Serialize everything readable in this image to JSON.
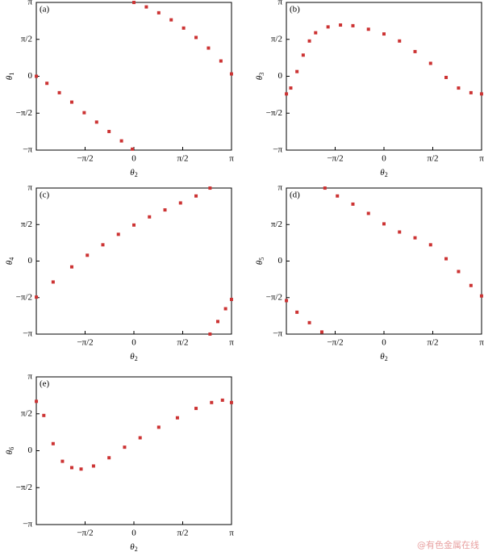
{
  "chart_data": [
    {
      "type": "scatter",
      "label": "(a)",
      "xlabel": {
        "symbol": "θ",
        "sub": "2"
      },
      "ylabel": {
        "symbol": "θ",
        "sub": "1"
      },
      "xlim": [
        -3.1416,
        3.1416
      ],
      "ylim": [
        -3.1416,
        3.1416
      ],
      "xticks": [
        {
          "value": -1.5708,
          "label": "−π/2"
        },
        0,
        {
          "value": 1.5708,
          "label": "π/2"
        },
        {
          "value": 3.1416,
          "label": "π"
        }
      ],
      "yticks": [
        {
          "value": -3.1416,
          "label": "−π"
        },
        {
          "value": -1.5708,
          "label": "−π/2"
        },
        0,
        {
          "value": 1.5708,
          "label": "π/2"
        },
        {
          "value": 3.1416,
          "label": "π"
        }
      ],
      "series": [
        {
          "color": "#cc3333",
          "x": [
            -3.14,
            -2.8,
            -2.4,
            -2.0,
            -1.6,
            -1.2,
            -0.8,
            -0.4,
            -0.05
          ],
          "values": [
            0,
            -0.3,
            -0.7,
            -1.1,
            -1.55,
            -1.95,
            -2.35,
            -2.75,
            -3.1
          ]
        },
        {
          "color": "#cc3333",
          "x": [
            0,
            0.4,
            0.8,
            1.2,
            1.6,
            2.0,
            2.4,
            2.8,
            3.14
          ],
          "values": [
            3.14,
            2.95,
            2.7,
            2.4,
            2.05,
            1.65,
            1.2,
            0.65,
            0.1
          ]
        }
      ]
    },
    {
      "type": "scatter",
      "label": "(b)",
      "xlabel": {
        "symbol": "θ",
        "sub": "2"
      },
      "ylabel": {
        "symbol": "θ",
        "sub": "3"
      },
      "xlim": [
        -3.1416,
        3.1416
      ],
      "ylim": [
        -3.1416,
        3.1416
      ],
      "xticks": [
        {
          "value": -1.5708,
          "label": "−π/2"
        },
        0,
        {
          "value": 1.5708,
          "label": "π/2"
        },
        {
          "value": 3.1416,
          "label": "π"
        }
      ],
      "yticks": [
        {
          "value": -3.1416,
          "label": "−π"
        },
        {
          "value": -1.5708,
          "label": "−π/2"
        },
        0,
        {
          "value": 1.5708,
          "label": "π/2"
        },
        {
          "value": 3.1416,
          "label": "π"
        }
      ],
      "series": [
        {
          "color": "#cc3333",
          "x": [
            -3.14,
            -3.0,
            -2.8,
            -2.6,
            -2.4,
            -2.2,
            -1.8,
            -1.4,
            -1.0,
            -0.5,
            0,
            0.5,
            1.0,
            1.5,
            2.0,
            2.4,
            2.8,
            3.14
          ],
          "values": [
            -0.75,
            -0.5,
            0.2,
            0.9,
            1.5,
            1.85,
            2.1,
            2.18,
            2.15,
            2.0,
            1.8,
            1.5,
            1.05,
            0.55,
            -0.05,
            -0.5,
            -0.7,
            -0.75
          ]
        }
      ]
    },
    {
      "type": "scatter",
      "label": "(c)",
      "xlabel": {
        "symbol": "θ",
        "sub": "2"
      },
      "ylabel": {
        "symbol": "θ",
        "sub": "4"
      },
      "xlim": [
        -3.1416,
        3.1416
      ],
      "ylim": [
        -3.1416,
        3.1416
      ],
      "xticks": [
        {
          "value": -1.5708,
          "label": "−π/2"
        },
        0,
        {
          "value": 1.5708,
          "label": "π/2"
        },
        {
          "value": 3.1416,
          "label": "π"
        }
      ],
      "yticks": [
        {
          "value": -3.1416,
          "label": "−π"
        },
        {
          "value": -1.5708,
          "label": "−π/2"
        },
        0,
        {
          "value": 1.5708,
          "label": "π/2"
        },
        {
          "value": 3.1416,
          "label": "π"
        }
      ],
      "series": [
        {
          "color": "#cc3333",
          "x": [
            -3.14,
            -2.6,
            -2.0,
            -1.5,
            -1.0,
            -0.5,
            0,
            0.5,
            1.0,
            1.5,
            2.0,
            2.45
          ],
          "values": [
            -1.55,
            -0.9,
            -0.25,
            0.25,
            0.7,
            1.15,
            1.55,
            1.9,
            2.2,
            2.5,
            2.8,
            3.14
          ]
        },
        {
          "color": "#cc3333",
          "x": [
            2.45,
            2.7,
            2.95,
            3.14
          ],
          "values": [
            -3.14,
            -2.6,
            -2.05,
            -1.65
          ]
        }
      ]
    },
    {
      "type": "scatter",
      "label": "(d)",
      "xlabel": {
        "symbol": "θ",
        "sub": "2"
      },
      "ylabel": {
        "symbol": "θ",
        "sub": "5"
      },
      "xlim": [
        -3.1416,
        3.1416
      ],
      "ylim": [
        -3.1416,
        3.1416
      ],
      "xticks": [
        {
          "value": -1.5708,
          "label": "−π/2"
        },
        0,
        {
          "value": 1.5708,
          "label": "π/2"
        },
        {
          "value": 3.1416,
          "label": "π"
        }
      ],
      "yticks": [
        {
          "value": -3.1416,
          "label": "−π"
        },
        {
          "value": -1.5708,
          "label": "−π/2"
        },
        0,
        {
          "value": 1.5708,
          "label": "π/2"
        },
        {
          "value": 3.1416,
          "label": "π"
        }
      ],
      "series": [
        {
          "color": "#cc3333",
          "x": [
            -1.9,
            -1.5,
            -1.0,
            -0.5,
            0,
            0.5,
            1.0,
            1.5,
            2.0,
            2.4,
            2.8,
            3.14
          ],
          "values": [
            3.14,
            2.8,
            2.45,
            2.05,
            1.6,
            1.25,
            1.0,
            0.7,
            0.1,
            -0.45,
            -1.05,
            -1.5
          ]
        },
        {
          "color": "#cc3333",
          "x": [
            -3.14,
            -2.8,
            -2.4,
            -2.0
          ],
          "values": [
            -1.7,
            -2.2,
            -2.65,
            -3.05
          ]
        }
      ]
    },
    {
      "type": "scatter",
      "label": "(e)",
      "xlabel": {
        "symbol": "θ",
        "sub": "2"
      },
      "ylabel": {
        "symbol": "θ",
        "sub": "6"
      },
      "xlim": [
        -3.1416,
        3.1416
      ],
      "ylim": [
        -3.1416,
        3.1416
      ],
      "xticks": [
        {
          "value": -1.5708,
          "label": "−π/2"
        },
        0,
        {
          "value": 1.5708,
          "label": "π/2"
        },
        {
          "value": 3.1416,
          "label": "π"
        }
      ],
      "yticks": [
        {
          "value": -3.1416,
          "label": "−π"
        },
        {
          "value": -1.5708,
          "label": "−π/2"
        },
        0,
        {
          "value": 1.5708,
          "label": "π/2"
        },
        {
          "value": 3.1416,
          "label": "π"
        }
      ],
      "series": [
        {
          "color": "#cc3333",
          "x": [
            -3.14,
            -2.9,
            -2.6,
            -2.3,
            -2.0,
            -1.7,
            -1.3,
            -0.8,
            -0.3,
            0.2,
            0.8,
            1.4,
            2.0,
            2.5,
            2.85,
            3.14
          ],
          "values": [
            2.1,
            1.5,
            0.3,
            -0.45,
            -0.72,
            -0.78,
            -0.65,
            -0.3,
            0.15,
            0.55,
            1.0,
            1.4,
            1.8,
            2.05,
            2.15,
            2.05
          ]
        }
      ]
    }
  ],
  "watermark": "@有色金属在线"
}
